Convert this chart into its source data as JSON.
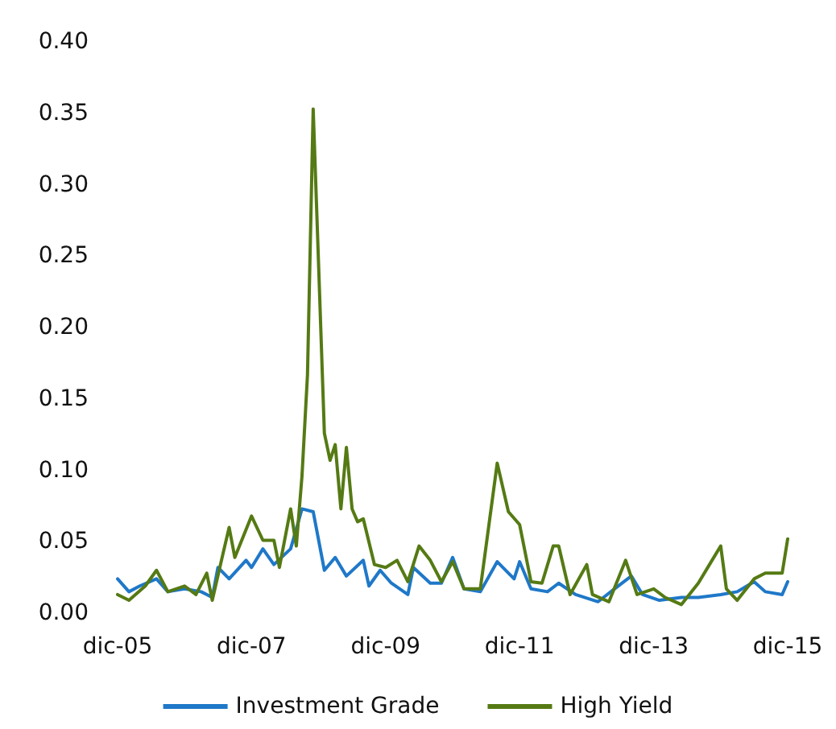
{
  "chart_data": {
    "type": "line",
    "legend": "bottom",
    "grid": false,
    "marker": "none",
    "line_style": "solid",
    "xlim": [
      "2005-12",
      "2015-12"
    ],
    "xticks": [
      {
        "value": "2005-12",
        "label": "dic-05"
      },
      {
        "value": "2007-12",
        "label": "dic-07"
      },
      {
        "value": "2009-12",
        "label": "dic-09"
      },
      {
        "value": "2011-12",
        "label": "dic-11"
      },
      {
        "value": "2013-12",
        "label": "dic-13"
      },
      {
        "value": "2015-12",
        "label": "dic-15"
      }
    ],
    "ylim": [
      0,
      0.4
    ],
    "yticks": [
      {
        "value": 0,
        "label": "0.00"
      },
      {
        "value": 0.05,
        "label": "0.05"
      },
      {
        "value": 0.1,
        "label": "0.10"
      },
      {
        "value": 0.15,
        "label": "0.15"
      },
      {
        "value": 0.2,
        "label": "0.20"
      },
      {
        "value": 0.25,
        "label": "0.25"
      },
      {
        "value": 0.3,
        "label": "0.30"
      },
      {
        "value": 0.35,
        "label": "0.35"
      },
      {
        "value": 0.4,
        "label": "0.40"
      }
    ],
    "series": [
      {
        "name": "Investment Grade",
        "color": "#1f78c8",
        "x": [
          "2005-12",
          "2006-02",
          "2006-04",
          "2006-07",
          "2006-09",
          "2006-12",
          "2007-03",
          "2007-05",
          "2007-06",
          "2007-08",
          "2007-11",
          "2007-12",
          "2008-02",
          "2008-04",
          "2008-07",
          "2008-09",
          "2008-11",
          "2009-01",
          "2009-03",
          "2009-05",
          "2009-08",
          "2009-09",
          "2009-11",
          "2010-01",
          "2010-04",
          "2010-05",
          "2010-08",
          "2010-10",
          "2010-12",
          "2011-02",
          "2011-05",
          "2011-08",
          "2011-11",
          "2011-12",
          "2012-02",
          "2012-05",
          "2012-07",
          "2012-10",
          "2013-02",
          "2013-05",
          "2013-08",
          "2013-10",
          "2014-01",
          "2014-05",
          "2014-08",
          "2014-12",
          "2015-03",
          "2015-06",
          "2015-08",
          "2015-11",
          "2015-12"
        ],
        "values": [
          0.024,
          0.015,
          0.019,
          0.024,
          0.015,
          0.017,
          0.015,
          0.011,
          0.032,
          0.024,
          0.037,
          0.032,
          0.045,
          0.034,
          0.045,
          0.073,
          0.071,
          0.03,
          0.039,
          0.026,
          0.037,
          0.019,
          0.03,
          0.021,
          0.013,
          0.032,
          0.021,
          0.021,
          0.039,
          0.017,
          0.015,
          0.036,
          0.024,
          0.036,
          0.017,
          0.015,
          0.021,
          0.013,
          0.008,
          0.017,
          0.026,
          0.013,
          0.009,
          0.011,
          0.011,
          0.013,
          0.015,
          0.022,
          0.015,
          0.013,
          0.022
        ]
      },
      {
        "name": "High Yield",
        "color": "#557a14",
        "x": [
          "2005-12",
          "2006-02",
          "2006-05",
          "2006-07",
          "2006-09",
          "2006-12",
          "2007-02",
          "2007-04",
          "2007-05",
          "2007-07",
          "2007-08",
          "2007-09",
          "2007-12",
          "2008-02",
          "2008-04",
          "2008-05",
          "2008-07",
          "2008-08",
          "2008-09",
          "2008-10",
          "2008-11",
          "2008-12",
          "2009-01",
          "2009-02",
          "2009-03",
          "2009-04",
          "2009-05",
          "2009-06",
          "2009-07",
          "2009-08",
          "2009-10",
          "2009-12",
          "2010-02",
          "2010-04",
          "2010-06",
          "2010-08",
          "2010-10",
          "2010-12",
          "2011-02",
          "2011-05",
          "2011-08",
          "2011-10",
          "2011-12",
          "2012-02",
          "2012-04",
          "2012-06",
          "2012-07",
          "2012-09",
          "2012-12",
          "2013-01",
          "2013-04",
          "2013-07",
          "2013-09",
          "2013-12",
          "2014-02",
          "2014-05",
          "2014-08",
          "2014-10",
          "2014-12",
          "2015-01",
          "2015-03",
          "2015-06",
          "2015-08",
          "2015-11",
          "2015-12"
        ],
        "values": [
          0.013,
          0.009,
          0.019,
          0.03,
          0.015,
          0.019,
          0.013,
          0.028,
          0.009,
          0.043,
          0.06,
          0.039,
          0.068,
          0.051,
          0.051,
          0.032,
          0.073,
          0.047,
          0.096,
          0.167,
          0.353,
          0.242,
          0.126,
          0.107,
          0.118,
          0.073,
          0.116,
          0.073,
          0.064,
          0.066,
          0.034,
          0.032,
          0.037,
          0.022,
          0.047,
          0.037,
          0.022,
          0.036,
          0.017,
          0.017,
          0.105,
          0.071,
          0.062,
          0.022,
          0.021,
          0.047,
          0.047,
          0.013,
          0.034,
          0.013,
          0.008,
          0.037,
          0.013,
          0.017,
          0.011,
          0.006,
          0.021,
          0.034,
          0.047,
          0.017,
          0.009,
          0.024,
          0.028,
          0.028,
          0.052
        ]
      }
    ]
  }
}
